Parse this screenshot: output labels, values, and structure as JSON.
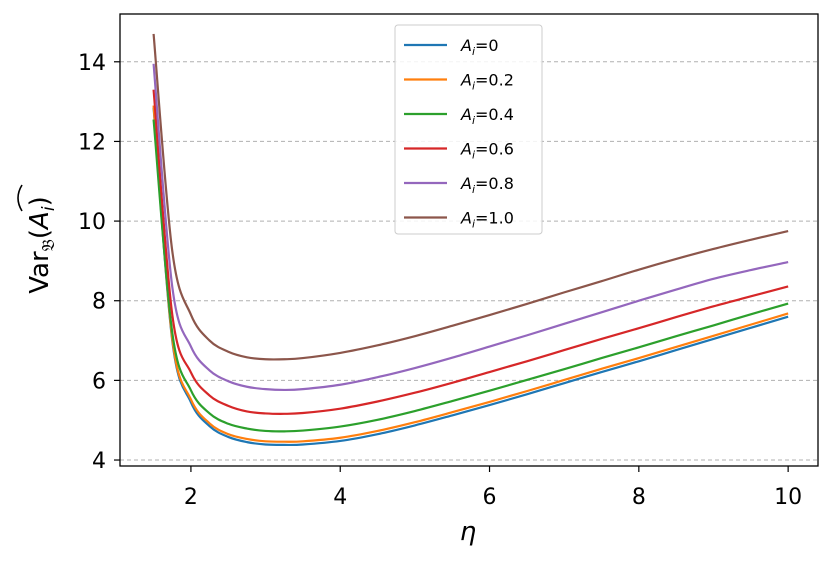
{
  "chart_data": {
    "type": "line",
    "xlabel": "η",
    "ylabel": "Var𝔅(Ãᵢ)",
    "xlim": [
      1.05,
      10.4
    ],
    "ylim": [
      3.85,
      15.2
    ],
    "xticks": [
      2,
      4,
      6,
      8,
      10
    ],
    "yticks": [
      4,
      6,
      8,
      10,
      12,
      14
    ],
    "xtick_labels": [
      "2",
      "4",
      "6",
      "8",
      "10"
    ],
    "ytick_labels": [
      "4",
      "6",
      "8",
      "10",
      "12",
      "14"
    ],
    "grid": "y-axis dashed",
    "legend_position": "top-center",
    "x": [
      1.5,
      1.75,
      2.0,
      2.25,
      2.5,
      2.75,
      3.0,
      3.25,
      3.5,
      4.0,
      4.5,
      5.0,
      5.5,
      6.0,
      6.5,
      7.0,
      7.5,
      8.0,
      8.5,
      9.0,
      9.5,
      10.0
    ],
    "series": [
      {
        "name": "Ai=0",
        "legend_sub": "i",
        "legend_value": "0",
        "color": "#1f77b4",
        "values": [
          12.85,
          7.0,
          5.45,
          4.85,
          4.58,
          4.45,
          4.39,
          4.38,
          4.39,
          4.48,
          4.65,
          4.87,
          5.12,
          5.38,
          5.65,
          5.93,
          6.21,
          6.48,
          6.76,
          7.04,
          7.32,
          7.6
        ]
      },
      {
        "name": "Ai=0.2",
        "legend_sub": "i",
        "legend_value": "0.2",
        "color": "#ff7f0e",
        "values": [
          12.9,
          7.05,
          5.52,
          4.92,
          4.65,
          4.53,
          4.47,
          4.46,
          4.47,
          4.56,
          4.73,
          4.95,
          5.2,
          5.46,
          5.73,
          6.01,
          6.29,
          6.56,
          6.84,
          7.12,
          7.4,
          7.68
        ]
      },
      {
        "name": "Ai=0.4",
        "legend_sub": "i",
        "legend_value": "0.4",
        "color": "#2ca02c",
        "values": [
          12.55,
          7.2,
          5.75,
          5.17,
          4.91,
          4.79,
          4.73,
          4.72,
          4.74,
          4.84,
          5.01,
          5.23,
          5.48,
          5.74,
          6.01,
          6.28,
          6.56,
          6.83,
          7.11,
          7.38,
          7.66,
          7.93
        ]
      },
      {
        "name": "Ai=0.6",
        "legend_sub": "i",
        "legend_value": "0.6",
        "color": "#d62728",
        "values": [
          13.3,
          7.65,
          6.2,
          5.62,
          5.36,
          5.22,
          5.17,
          5.16,
          5.18,
          5.29,
          5.47,
          5.69,
          5.94,
          6.21,
          6.48,
          6.76,
          7.04,
          7.31,
          7.59,
          7.86,
          8.11,
          8.36
        ]
      },
      {
        "name": "Ai=0.8",
        "legend_sub": "i",
        "legend_value": "0.8",
        "color": "#9467bd",
        "values": [
          13.95,
          8.35,
          6.85,
          6.25,
          5.98,
          5.84,
          5.78,
          5.76,
          5.78,
          5.89,
          6.08,
          6.31,
          6.57,
          6.85,
          7.13,
          7.42,
          7.71,
          8.0,
          8.28,
          8.55,
          8.77,
          8.97
        ]
      },
      {
        "name": "Ai=1.0",
        "legend_sub": "i",
        "legend_value": "1.0",
        "color": "#8c564b",
        "values": [
          14.7,
          9.25,
          7.65,
          7.0,
          6.72,
          6.58,
          6.53,
          6.53,
          6.56,
          6.69,
          6.88,
          7.11,
          7.37,
          7.64,
          7.92,
          8.21,
          8.49,
          8.78,
          9.05,
          9.3,
          9.53,
          9.75
        ]
      }
    ]
  }
}
